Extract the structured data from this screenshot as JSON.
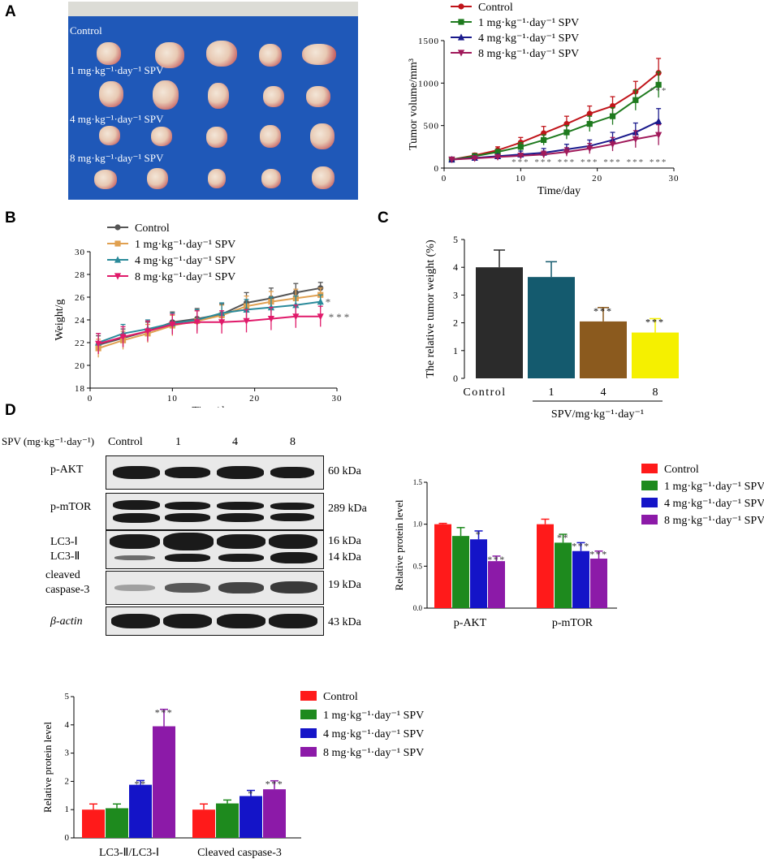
{
  "panels": {
    "a": "A",
    "b": "B",
    "c": "C",
    "d": "D"
  },
  "photo": {
    "rows": [
      "Control",
      "1 mg·kg⁻¹·day⁻¹ SPV",
      "4 mg·kg⁻¹·day⁻¹ SPV",
      "8 mg·kg⁻¹·day⁻¹ SPV"
    ]
  },
  "colors": {
    "control": "#c0141a",
    "g1": "#1e7a1e",
    "g4": "#1a1a8c",
    "g8": "#a0195a",
    "b_control": "#555555",
    "b_g1": "#e0a050",
    "b_g4": "#2a8a9a",
    "b_g8": "#e01a6a",
    "c_control": "#2b2b2b",
    "c_g1": "#145a6e",
    "c_g4": "#8b5a1e",
    "c_g8": "#f5f000",
    "d_control": "#ff1a1a",
    "d_g1": "#1e8a1e",
    "d_g4": "#1414c8",
    "d_g8": "#8c1aa8"
  },
  "legend": [
    "Control",
    "1 mg·kg⁻¹·day⁻¹ SPV",
    "4 mg·kg⁻¹·day⁻¹ SPV",
    "8 mg·kg⁻¹·day⁻¹ SPV"
  ],
  "chart_data": [
    {
      "id": "A",
      "type": "line",
      "xlabel": "Time/day",
      "ylabel": "Tumor volume/mm³",
      "xlim": [
        0,
        30
      ],
      "ylim": [
        0,
        1500
      ],
      "xticks": [
        0,
        10,
        20,
        30
      ],
      "yticks": [
        0,
        500,
        1000,
        1500
      ],
      "x": [
        1,
        4,
        7,
        10,
        13,
        16,
        19,
        22,
        25,
        28
      ],
      "series": [
        {
          "name": "Control",
          "values": [
            100,
            150,
            210,
            300,
            410,
            520,
            640,
            730,
            900,
            1120
          ],
          "err": [
            20,
            25,
            40,
            60,
            80,
            90,
            90,
            110,
            120,
            170
          ]
        },
        {
          "name": "1 mg·kg⁻¹·day⁻¹ SPV",
          "values": [
            100,
            140,
            190,
            250,
            330,
            420,
            520,
            610,
            800,
            980
          ],
          "err": [
            15,
            20,
            30,
            50,
            60,
            80,
            90,
            100,
            120,
            150
          ]
        },
        {
          "name": "4 mg·kg⁻¹·day⁻¹ SPV",
          "values": [
            100,
            120,
            140,
            160,
            180,
            220,
            260,
            330,
            420,
            550
          ],
          "err": [
            10,
            15,
            20,
            40,
            50,
            60,
            70,
            90,
            110,
            150
          ]
        },
        {
          "name": "8 mg·kg⁻¹·day⁻¹ SPV",
          "values": [
            100,
            115,
            130,
            145,
            160,
            190,
            230,
            280,
            340,
            390
          ],
          "err": [
            10,
            15,
            20,
            30,
            40,
            50,
            60,
            80,
            100,
            120
          ]
        }
      ],
      "annotations": [
        "***",
        "***",
        "***",
        "***",
        "***",
        "***",
        "***"
      ]
    },
    {
      "id": "B",
      "type": "line",
      "xlabel": "Time/day",
      "ylabel": "Weight/g",
      "xlim": [
        0,
        30
      ],
      "ylim": [
        18,
        30
      ],
      "xticks": [
        0,
        10,
        20,
        30
      ],
      "yticks": [
        18,
        20,
        22,
        24,
        26,
        28,
        30
      ],
      "x": [
        1,
        4,
        7,
        10,
        13,
        16,
        19,
        22,
        25,
        28
      ],
      "series": [
        {
          "name": "Control",
          "values": [
            21.8,
            22.4,
            23.0,
            23.8,
            24.1,
            24.5,
            25.5,
            25.9,
            26.4,
            26.8
          ],
          "err": [
            0.8,
            0.8,
            0.8,
            0.9,
            0.9,
            0.9,
            0.9,
            0.9,
            0.8,
            0.5
          ]
        },
        {
          "name": "1 mg·kg⁻¹·day⁻¹ SPV",
          "values": [
            21.5,
            22.2,
            22.8,
            23.5,
            23.9,
            24.4,
            25.2,
            25.6,
            25.9,
            26.2
          ],
          "err": [
            0.8,
            0.8,
            0.8,
            0.9,
            0.9,
            0.9,
            0.9,
            0.9,
            0.8,
            0.6
          ]
        },
        {
          "name": "4 mg·kg⁻¹·day⁻¹ SPV",
          "values": [
            22.0,
            22.8,
            23.2,
            23.7,
            24.0,
            24.6,
            24.9,
            25.1,
            25.3,
            25.6
          ],
          "err": [
            0.8,
            0.8,
            0.8,
            0.9,
            0.9,
            0.9,
            0.9,
            0.9,
            0.8,
            0.6
          ]
        },
        {
          "name": "8 mg·kg⁻¹·day⁻¹ SPV",
          "values": [
            21.9,
            22.5,
            23.0,
            23.6,
            23.8,
            23.8,
            23.9,
            24.1,
            24.3,
            24.3
          ],
          "err": [
            0.9,
            0.9,
            0.9,
            0.9,
            1.0,
            1.0,
            1.0,
            1.0,
            1.0,
            0.9
          ]
        }
      ],
      "annotations": [
        "*",
        "***"
      ]
    },
    {
      "id": "C",
      "type": "bar",
      "ylabel": "The relative tumor weight (%)",
      "xlabel": "SPV/mg·kg⁻¹·day⁻¹",
      "ylim": [
        0,
        5
      ],
      "yticks": [
        0,
        1,
        2,
        3,
        4,
        5
      ],
      "categories": [
        "Control",
        "1",
        "4",
        "8"
      ],
      "values": [
        4.0,
        3.65,
        2.05,
        1.65
      ],
      "err": [
        0.62,
        0.55,
        0.5,
        0.5
      ],
      "annotations": [
        "",
        "",
        "***",
        "***"
      ]
    },
    {
      "id": "D1",
      "type": "bar",
      "ylabel": "Relative protein level",
      "ylim": [
        0,
        1.5
      ],
      "yticks": [
        "0.0",
        "0.5",
        "1.0",
        "1.5"
      ],
      "categories": [
        "p-AKT",
        "p-mTOR"
      ],
      "series": [
        {
          "name": "Control",
          "values": [
            1.0,
            1.0
          ],
          "err": [
            0.01,
            0.06
          ]
        },
        {
          "name": "1 mg·kg⁻¹·day⁻¹ SPV",
          "values": [
            0.86,
            0.78
          ],
          "err": [
            0.1,
            0.1
          ]
        },
        {
          "name": "4 mg·kg⁻¹·day⁻¹ SPV",
          "values": [
            0.82,
            0.68
          ],
          "err": [
            0.1,
            0.1
          ]
        },
        {
          "name": "8 mg·kg⁻¹·day⁻¹ SPV",
          "values": [
            0.56,
            0.59
          ],
          "err": [
            0.06,
            0.09
          ]
        }
      ],
      "annotations": [
        [
          "",
          "",
          "*",
          "***"
        ],
        [
          "",
          "**",
          "***",
          "***"
        ]
      ]
    },
    {
      "id": "D2",
      "type": "bar",
      "ylabel": "Relative protein level",
      "ylim": [
        0,
        5
      ],
      "yticks": [
        0,
        1,
        2,
        3,
        4,
        5
      ],
      "categories": [
        "LC3-Ⅱ/LC3-Ⅰ",
        "Cleaved caspase-3"
      ],
      "series": [
        {
          "name": "Control",
          "values": [
            1.0,
            1.0
          ],
          "err": [
            0.2,
            0.2
          ]
        },
        {
          "name": "1 mg·kg⁻¹·day⁻¹ SPV",
          "values": [
            1.05,
            1.22
          ],
          "err": [
            0.15,
            0.12
          ]
        },
        {
          "name": "4 mg·kg⁻¹·day⁻¹ SPV",
          "values": [
            1.88,
            1.48
          ],
          "err": [
            0.15,
            0.2
          ]
        },
        {
          "name": "8 mg·kg⁻¹·day⁻¹ SPV",
          "values": [
            3.95,
            1.72
          ],
          "err": [
            0.6,
            0.3
          ]
        }
      ],
      "annotations": [
        [
          "",
          "",
          "**",
          "***"
        ],
        [
          "",
          "",
          "*",
          "***"
        ]
      ]
    }
  ],
  "blot": {
    "header_label": "SPV (mg·kg⁻¹·day⁻¹)",
    "lanes": [
      "Control",
      "1",
      "4",
      "8"
    ],
    "rows": [
      {
        "label": "p-AKT",
        "kda": "60 kDa"
      },
      {
        "label": "p-mTOR",
        "kda": "289 kDa"
      },
      {
        "label": "LC3-Ⅰ",
        "kda": "16 kDa"
      },
      {
        "label": "LC3-Ⅱ",
        "kda": "14 kDa"
      },
      {
        "label": "cleaved",
        "kda": "19 kDa"
      },
      {
        "label": "caspase-3",
        "kda": ""
      },
      {
        "label": "β-actin",
        "kda": "43 kDa"
      }
    ]
  }
}
